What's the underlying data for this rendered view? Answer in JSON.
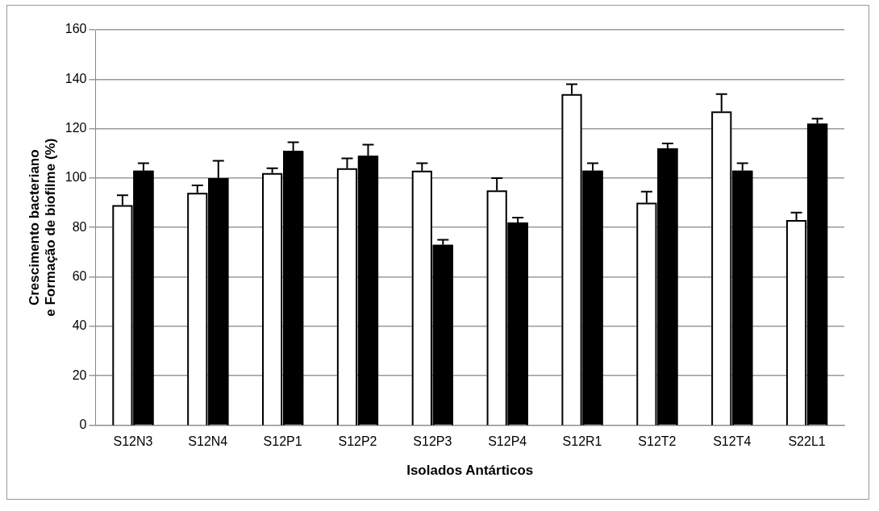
{
  "chart_data": {
    "type": "bar",
    "xlabel": "Isolados Antárticos",
    "ylabel": "Crescimento bacteriano e Formação de biofilme (%)",
    "categories": [
      "S12N3",
      "S12N4",
      "S12P1",
      "S12P2",
      "S12P3",
      "S12P4",
      "S12R1",
      "S12T2",
      "S12T4",
      "S22L1"
    ],
    "series": [
      {
        "color": "#ffffff",
        "values": [
          89,
          94,
          102,
          104,
          103,
          95,
          134,
          90,
          127,
          83
        ],
        "errors": [
          [
            89,
            93
          ],
          [
            94,
            97
          ],
          [
            102,
            104
          ],
          [
            104,
            108
          ],
          [
            103,
            106
          ],
          [
            95,
            100
          ],
          [
            134,
            138
          ],
          [
            90,
            94.5
          ],
          [
            127,
            134
          ],
          [
            83,
            86
          ]
        ]
      },
      {
        "color": "#000000",
        "values": [
          103,
          100,
          111,
          109,
          73,
          82,
          103,
          112,
          103,
          122
        ],
        "errors": [
          [
            103,
            106
          ],
          [
            100,
            107
          ],
          [
            111,
            114.5
          ],
          [
            109,
            113.5
          ],
          [
            73,
            75
          ],
          [
            82,
            84
          ],
          [
            103,
            106
          ],
          [
            112,
            114
          ],
          [
            103,
            106
          ],
          [
            122,
            124
          ]
        ]
      }
    ],
    "ylim": [
      0,
      160
    ],
    "yticks": [
      0,
      20,
      40,
      60,
      80,
      100,
      120,
      140,
      160
    ],
    "grid": "y",
    "legend": false
  }
}
